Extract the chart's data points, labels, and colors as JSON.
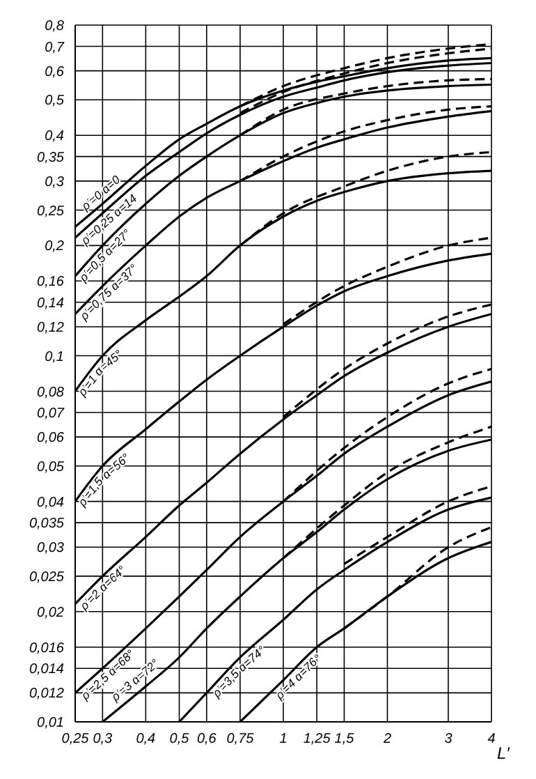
{
  "chart_data": {
    "type": "line",
    "xlabel": "L′",
    "log": "xy",
    "grid": true,
    "marker": "none",
    "xlim": [
      0.25,
      4
    ],
    "xticks": [
      {
        "value": 0.25,
        "label": "0,25"
      },
      {
        "value": 0.3,
        "label": "0,3"
      },
      {
        "value": 0.4,
        "label": "0,4"
      },
      {
        "value": 0.5,
        "label": "0,5"
      },
      {
        "value": 0.6,
        "label": "0,6"
      },
      {
        "value": 0.75,
        "label": "0,75"
      },
      1,
      {
        "value": 1.25,
        "label": "1,25"
      },
      {
        "value": 1.5,
        "label": "1,5"
      },
      2,
      3,
      4
    ],
    "ylim": [
      0.01,
      0.8
    ],
    "yticks": [
      {
        "value": 0.01,
        "label": "0,01"
      },
      {
        "value": 0.012,
        "label": "0,012"
      },
      {
        "value": 0.014,
        "label": "0,014"
      },
      {
        "value": 0.016,
        "label": "0,016"
      },
      {
        "value": 0.02,
        "label": "0,02"
      },
      {
        "value": 0.025,
        "label": "0,025"
      },
      {
        "value": 0.03,
        "label": "0,03"
      },
      {
        "value": 0.035,
        "label": "0,035"
      },
      {
        "value": 0.04,
        "label": "0,04"
      },
      {
        "value": 0.05,
        "label": "0,05"
      },
      {
        "value": 0.06,
        "label": "0,06"
      },
      {
        "value": 0.07,
        "label": "0,07"
      },
      {
        "value": 0.08,
        "label": "0,08"
      },
      {
        "value": 0.1,
        "label": "0,1"
      },
      {
        "value": 0.12,
        "label": "0,12"
      },
      {
        "value": 0.14,
        "label": "0,14"
      },
      {
        "value": 0.16,
        "label": "0,16"
      },
      {
        "value": 0.2,
        "label": "0,2"
      },
      {
        "value": 0.25,
        "label": "0,25"
      },
      {
        "value": 0.3,
        "label": "0,3"
      },
      {
        "value": 0.35,
        "label": "0,35"
      },
      {
        "value": 0.4,
        "label": "0,4"
      },
      {
        "value": 0.5,
        "label": "0,5"
      },
      {
        "value": 0.6,
        "label": "0,6"
      },
      {
        "value": 0.7,
        "label": "0,7"
      },
      {
        "value": 0.8,
        "label": "0,8"
      }
    ],
    "series": [
      {
        "name": "ρ′=0  α=0",
        "color": "#000000",
        "line_style": "solid",
        "x": [
          0.25,
          0.3,
          0.4,
          0.5,
          0.6,
          0.75,
          1,
          1.25,
          1.5,
          2,
          3,
          4
        ],
        "values": [
          0.225,
          0.26,
          0.33,
          0.39,
          0.43,
          0.48,
          0.53,
          0.56,
          0.58,
          0.61,
          0.64,
          0.65
        ]
      },
      {
        "name": "ρ′=0,25  α=14",
        "color": "#000000",
        "line_style": "solid",
        "x": [
          0.25,
          0.3,
          0.4,
          0.5,
          0.6,
          0.75,
          1,
          1.25,
          1.5,
          2,
          3,
          4
        ],
        "values": [
          0.21,
          0.245,
          0.31,
          0.36,
          0.405,
          0.455,
          0.51,
          0.54,
          0.565,
          0.595,
          0.62,
          0.63
        ]
      },
      {
        "name": "ρ′=0,5  α=27°",
        "color": "#000000",
        "line_style": "solid",
        "x": [
          0.25,
          0.3,
          0.4,
          0.5,
          0.6,
          0.75,
          1,
          1.25,
          1.5,
          2,
          3,
          4
        ],
        "values": [
          0.165,
          0.2,
          0.26,
          0.31,
          0.35,
          0.4,
          0.46,
          0.49,
          0.51,
          0.53,
          0.545,
          0.55
        ]
      },
      {
        "name": "ρ′=0,75  α=37°",
        "color": "#000000",
        "line_style": "solid",
        "x": [
          0.25,
          0.3,
          0.4,
          0.5,
          0.6,
          0.75,
          1,
          1.25,
          1.5,
          2,
          3,
          4
        ],
        "values": [
          0.13,
          0.155,
          0.2,
          0.24,
          0.27,
          0.3,
          0.34,
          0.37,
          0.39,
          0.42,
          0.45,
          0.466
        ]
      },
      {
        "name": "ρ′=1  α=45°",
        "color": "#000000",
        "line_style": "solid",
        "x": [
          0.25,
          0.3,
          0.4,
          0.5,
          0.6,
          0.75,
          1,
          1.25,
          1.5,
          2,
          3,
          4
        ],
        "values": [
          0.08,
          0.1,
          0.125,
          0.145,
          0.165,
          0.2,
          0.24,
          0.265,
          0.28,
          0.3,
          0.315,
          0.32
        ]
      },
      {
        "name": "ρ′=1,5  α=56°",
        "color": "#000000",
        "line_style": "solid",
        "x": [
          0.25,
          0.3,
          0.4,
          0.5,
          0.6,
          0.75,
          1,
          1.25,
          1.5,
          2,
          3,
          4
        ],
        "values": [
          0.04,
          0.05,
          0.063,
          0.075,
          0.086,
          0.1,
          0.12,
          0.137,
          0.15,
          0.165,
          0.182,
          0.19
        ]
      },
      {
        "name": "ρ′=2  α=64°",
        "color": "#000000",
        "line_style": "solid",
        "x": [
          0.25,
          0.3,
          0.4,
          0.5,
          0.6,
          0.75,
          1,
          1.25,
          1.5,
          2,
          3,
          4
        ],
        "values": [
          0.021,
          0.025,
          0.032,
          0.039,
          0.045,
          0.054,
          0.067,
          0.078,
          0.088,
          0.102,
          0.12,
          0.13
        ]
      },
      {
        "name": "ρ′=2,5  α=68°",
        "color": "#000000",
        "line_style": "solid",
        "x": [
          0.25,
          0.3,
          0.4,
          0.5,
          0.6,
          0.75,
          1,
          1.25,
          1.5,
          2,
          3,
          4
        ],
        "values": [
          0.012,
          0.014,
          0.018,
          0.022,
          0.026,
          0.032,
          0.04,
          0.047,
          0.054,
          0.064,
          0.078,
          0.085
        ]
      },
      {
        "name": "ρ′=3  α=72°",
        "color": "#000000",
        "line_style": "solid",
        "x": [
          0.3,
          0.4,
          0.5,
          0.6,
          0.75,
          1,
          1.25,
          1.5,
          2,
          3,
          4
        ],
        "values": [
          0.01,
          0.0125,
          0.015,
          0.018,
          0.022,
          0.028,
          0.033,
          0.038,
          0.046,
          0.055,
          0.059
        ]
      },
      {
        "name": "ρ′=3,5  α=74°",
        "color": "#000000",
        "line_style": "solid",
        "x": [
          0.5,
          0.6,
          0.75,
          1,
          1.25,
          1.5,
          2,
          3,
          4
        ],
        "values": [
          0.01,
          0.012,
          0.015,
          0.019,
          0.023,
          0.026,
          0.031,
          0.038,
          0.041
        ]
      },
      {
        "name": "ρ′=4  α=76°",
        "color": "#000000",
        "line_style": "solid",
        "x": [
          0.75,
          1,
          1.25,
          1.5,
          2,
          3,
          4
        ],
        "values": [
          0.01,
          0.013,
          0.016,
          0.018,
          0.022,
          0.028,
          0.031
        ]
      },
      {
        "color": "#000000",
        "line_style": "dashed",
        "x": [
          0.75,
          1,
          1.5,
          2,
          3,
          4
        ],
        "values": [
          0.48,
          0.545,
          0.61,
          0.65,
          0.69,
          0.71
        ]
      },
      {
        "color": "#000000",
        "line_style": "dashed",
        "x": [
          0.75,
          1,
          1.5,
          2,
          3,
          4
        ],
        "values": [
          0.46,
          0.525,
          0.59,
          0.63,
          0.67,
          0.69
        ]
      },
      {
        "color": "#000000",
        "line_style": "dashed",
        "x": [
          0.75,
          1,
          1.5,
          2,
          3,
          4
        ],
        "values": [
          0.4,
          0.47,
          0.52,
          0.545,
          0.565,
          0.57
        ]
      },
      {
        "color": "#000000",
        "line_style": "dashed",
        "x": [
          0.75,
          1,
          1.5,
          2,
          3,
          4
        ],
        "values": [
          0.3,
          0.35,
          0.41,
          0.44,
          0.47,
          0.48
        ]
      },
      {
        "color": "#000000",
        "line_style": "dashed",
        "x": [
          0.75,
          1,
          1.5,
          2,
          3,
          4
        ],
        "values": [
          0.2,
          0.245,
          0.29,
          0.32,
          0.35,
          0.36
        ]
      },
      {
        "color": "#000000",
        "line_style": "dashed",
        "x": [
          1,
          1.5,
          2,
          3,
          4
        ],
        "values": [
          0.122,
          0.155,
          0.175,
          0.2,
          0.21
        ]
      },
      {
        "color": "#000000",
        "line_style": "dashed",
        "x": [
          1,
          1.5,
          2,
          3,
          4
        ],
        "values": [
          0.068,
          0.092,
          0.108,
          0.128,
          0.138
        ]
      },
      {
        "color": "#000000",
        "line_style": "dashed",
        "x": [
          1,
          1.5,
          2,
          3,
          4
        ],
        "values": [
          0.04,
          0.056,
          0.068,
          0.084,
          0.092
        ]
      },
      {
        "color": "#000000",
        "line_style": "dashed",
        "x": [
          1,
          1.5,
          2,
          3,
          4
        ],
        "values": [
          0.028,
          0.039,
          0.048,
          0.058,
          0.064
        ]
      },
      {
        "color": "#000000",
        "line_style": "dashed",
        "x": [
          1.5,
          2,
          3,
          4
        ],
        "values": [
          0.027,
          0.032,
          0.04,
          0.044
        ]
      },
      {
        "color": "#000000",
        "line_style": "dashed",
        "x": [
          1.5,
          2,
          3,
          4
        ],
        "values": [
          0.018,
          0.022,
          0.03,
          0.034
        ]
      }
    ]
  }
}
